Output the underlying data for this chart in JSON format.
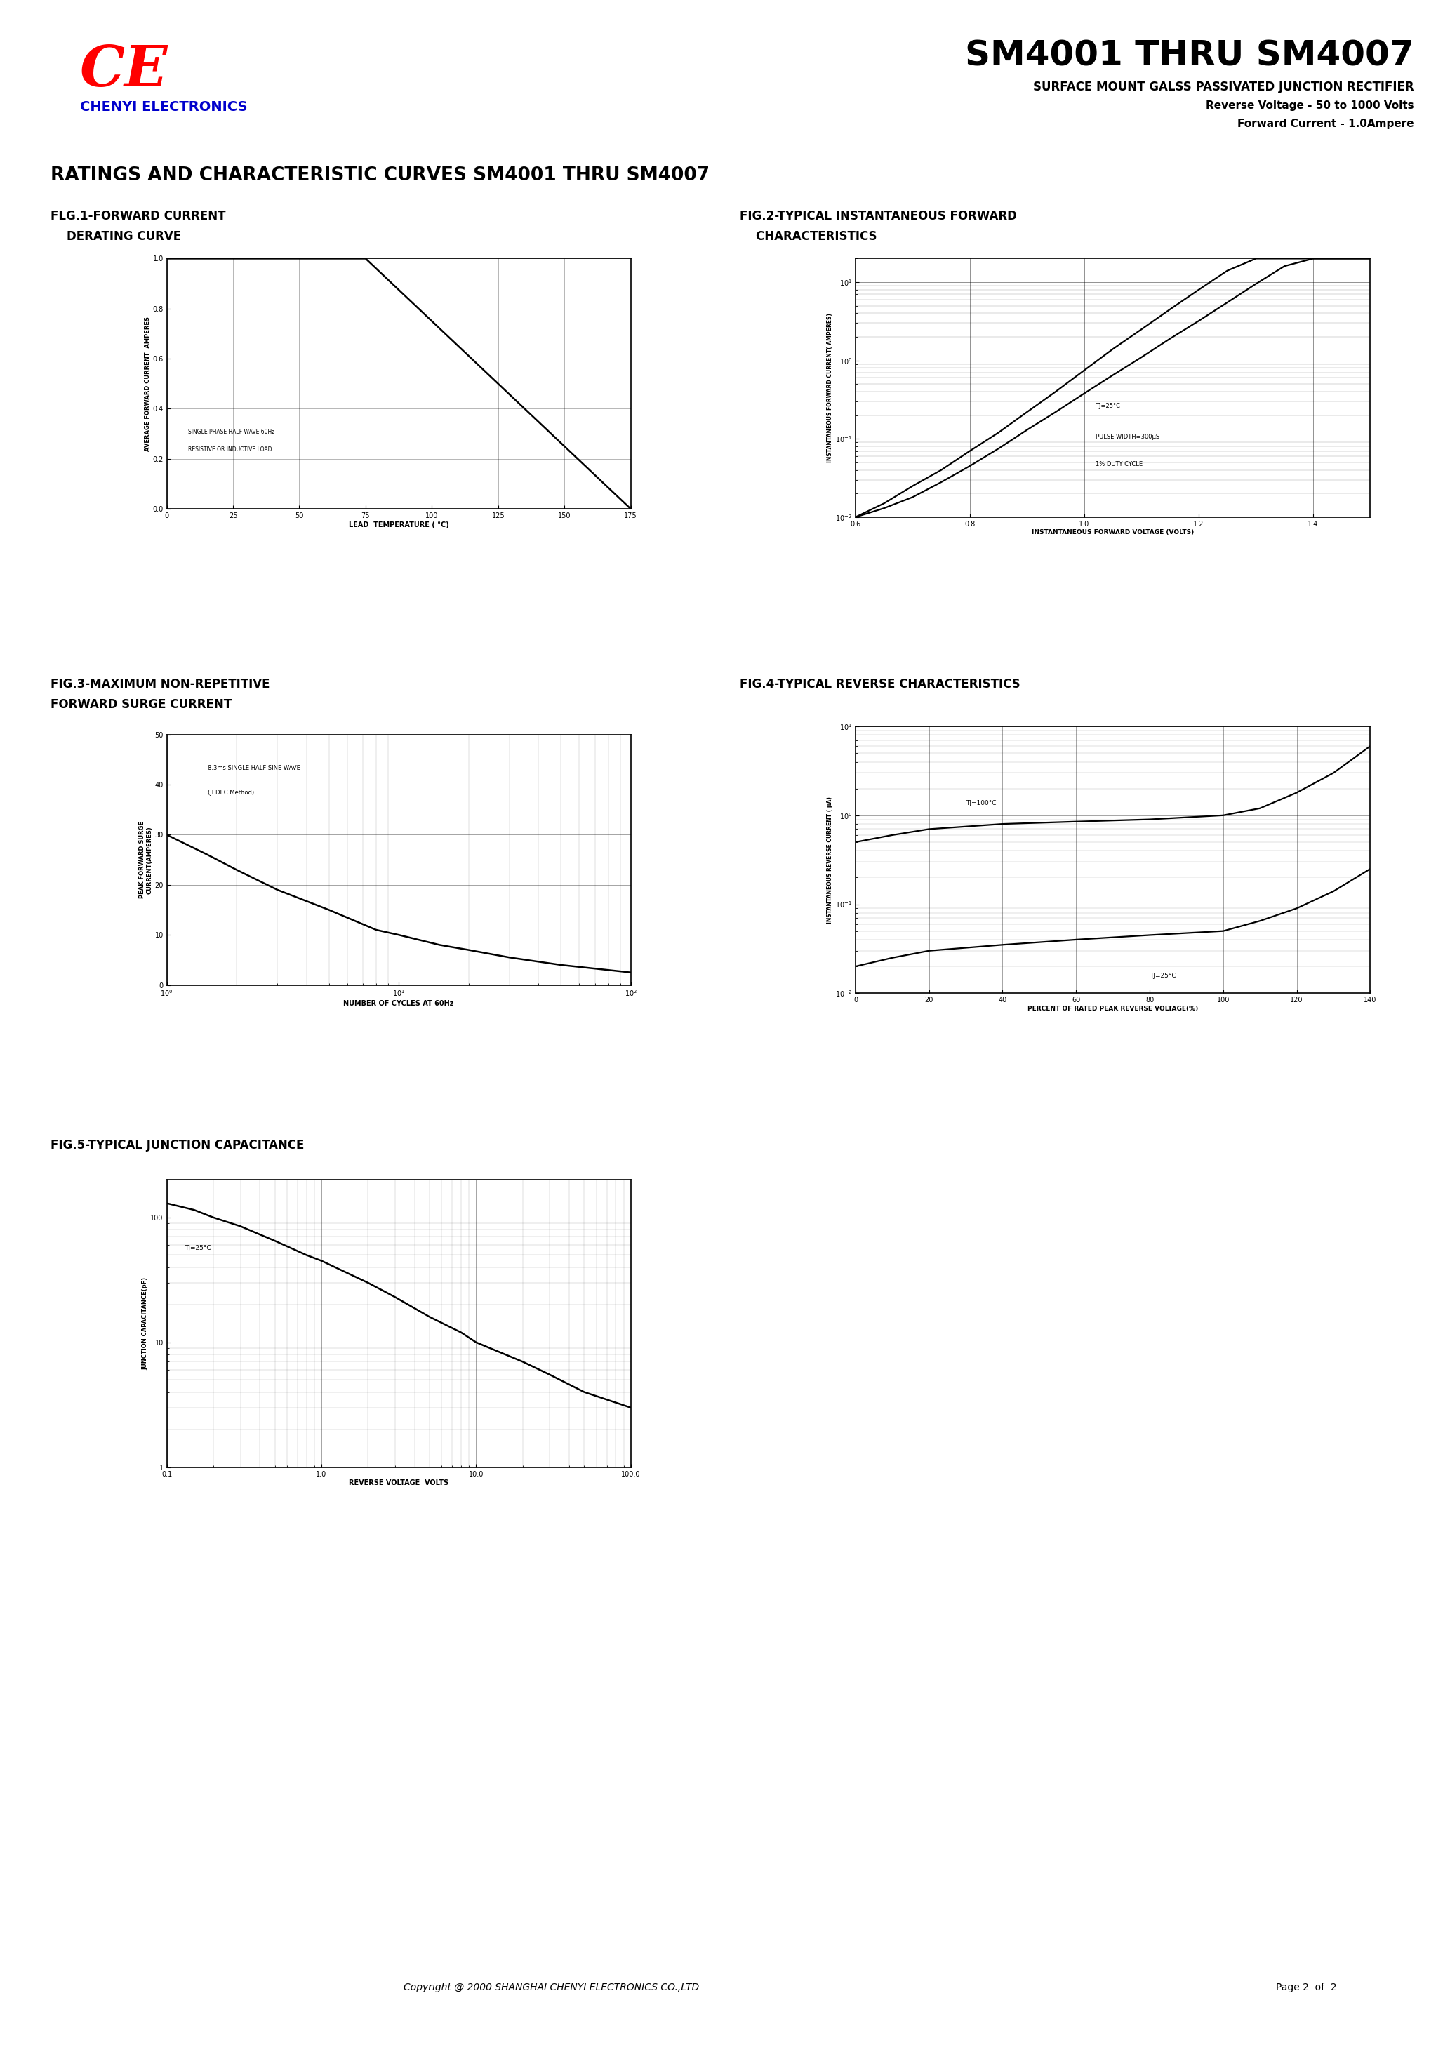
{
  "bg_color": "#ffffff",
  "ce_text": "CE",
  "ce_color": "#ff0000",
  "chenyi_text": "CHENYI ELECTRONICS",
  "chenyi_color": "#0000cc",
  "title_text": "SM4001 THRU SM4007",
  "subtitle1": "SURFACE MOUNT GALSS PASSIVATED JUNCTION RECTIFIER",
  "subtitle2": "Reverse Voltage - 50 to 1000 Volts",
  "subtitle3": "Forward Current - 1.0Ampere",
  "section_title": "RATINGS AND CHARACTERISTIC CURVES SM4001 THRU SM4007",
  "fig1_title1": "FLG.1-FORWARD CURRENT",
  "fig1_title2": "    DERATING CURVE",
  "fig2_title1": "FIG.2-TYPICAL INSTANTANEOUS FORWARD",
  "fig2_title2": "    CHARACTERISTICS",
  "fig3_title1": "FIG.3-MAXIMUM NON-REPETITIVE",
  "fig3_title2": "FORWARD SURGE CURRENT",
  "fig4_title": "FIG.4-TYPICAL REVERSE CHARACTERISTICS",
  "fig5_title": "FIG.5-TYPICAL JUNCTION CAPACITANCE",
  "footer_text": "Copyright @ 2000 SHANGHAI CHENYI ELECTRONICS CO.,LTD",
  "page_text": "Page 2  of  2"
}
